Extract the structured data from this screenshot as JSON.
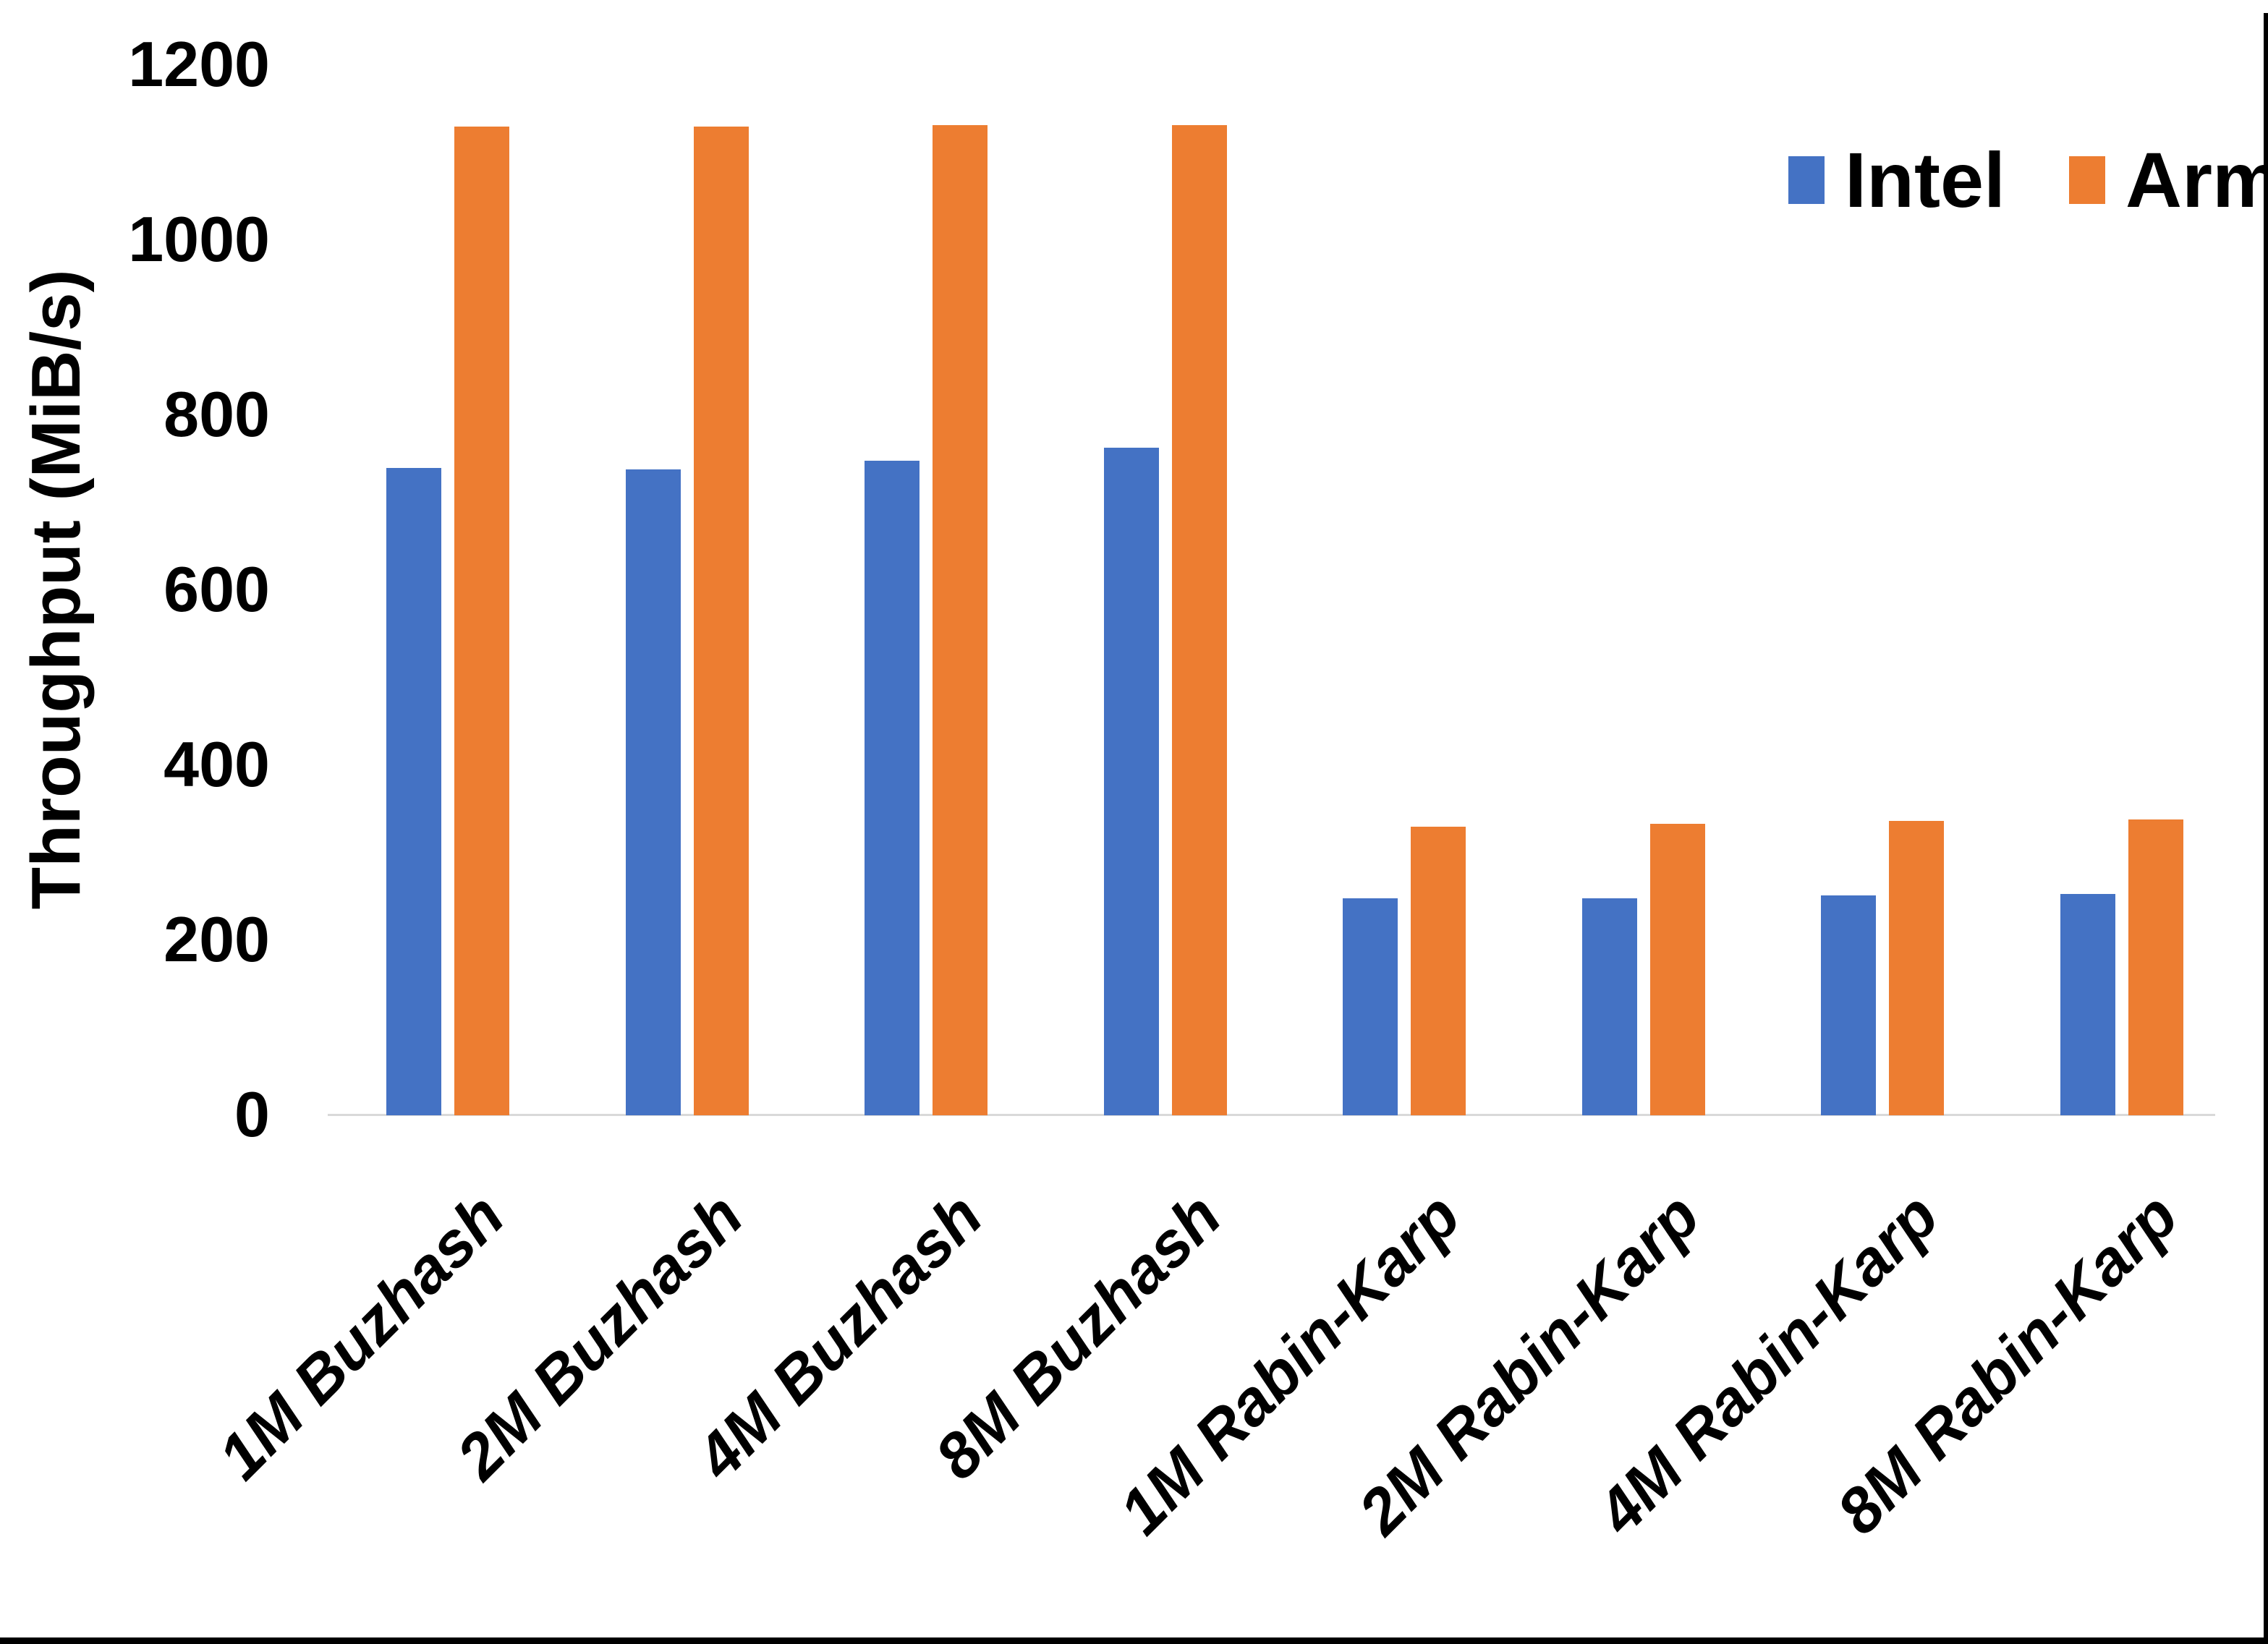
{
  "chart_data": {
    "type": "bar",
    "title": "",
    "categories": [
      "1M Buzhash",
      "2M Buzhash",
      "4M Buzhash",
      "8M Buzhash",
      "1M Rabin-Karp",
      "2M Rabin-Karp",
      "4M Rabin-Karp",
      "8M Rabin-Karp"
    ],
    "series": [
      {
        "name": "Intel",
        "color": "#4472C4",
        "values": [
          740,
          738,
          748,
          763,
          248,
          248,
          251,
          253
        ]
      },
      {
        "name": "Arm",
        "color": "#ED7D31",
        "values": [
          1130,
          1130,
          1131,
          1131,
          330,
          333,
          336,
          338
        ]
      }
    ],
    "ylabel": "Throughput (MiB/s)",
    "yticks": [
      0,
      200,
      400,
      600,
      800,
      1000,
      1200
    ],
    "ylim": [
      0,
      1200
    ],
    "grid": false,
    "legend_position": "top-right",
    "axis_line_color": "#D9D9D9",
    "text_color": "#000000"
  }
}
